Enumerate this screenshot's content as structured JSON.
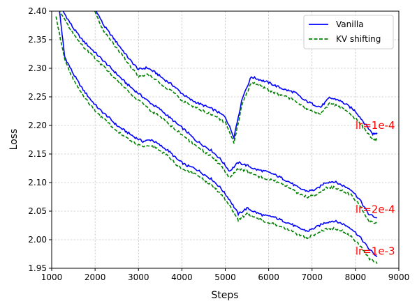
{
  "chart_data": {
    "type": "line",
    "xlabel": "Steps",
    "ylabel": "Loss",
    "xlim": [
      1000,
      9000
    ],
    "ylim": [
      1.95,
      2.4
    ],
    "xticks": [
      1000,
      2000,
      3000,
      4000,
      5000,
      6000,
      7000,
      8000,
      9000
    ],
    "yticks": [
      1.95,
      2.0,
      2.05,
      2.1,
      2.15,
      2.2,
      2.25,
      2.3,
      2.35,
      2.4
    ],
    "xtick_labels": [
      "1000",
      "2000",
      "3000",
      "4000",
      "5000",
      "6000",
      "7000",
      "8000",
      "9000"
    ],
    "ytick_labels": [
      "1.95",
      "2.00",
      "2.05",
      "2.10",
      "2.15",
      "2.20",
      "2.25",
      "2.30",
      "2.35",
      "2.40"
    ],
    "grid": true,
    "legend": {
      "position": "top-right",
      "entries": [
        {
          "name": "Vanilla",
          "color": "#0000ff",
          "style": "solid"
        },
        {
          "name": "KV shifting",
          "color": "#008000",
          "style": "dashed"
        }
      ]
    },
    "series": [
      {
        "name": "Vanilla",
        "group": "lr=1e-4",
        "color": "#0000ff",
        "style": "solid",
        "x": [
          1900,
          2000,
          2200,
          2400,
          2600,
          2800,
          3000,
          3200,
          3400,
          3600,
          3800,
          4000,
          4200,
          4400,
          4600,
          4800,
          5000,
          5200,
          5400,
          5600,
          5800,
          6000,
          6200,
          6400,
          6600,
          6800,
          7000,
          7200,
          7400,
          7600,
          7800,
          8000,
          8200,
          8400,
          8500
        ],
        "y": [
          2.42,
          2.405,
          2.375,
          2.355,
          2.335,
          2.315,
          2.298,
          2.301,
          2.292,
          2.28,
          2.27,
          2.256,
          2.245,
          2.238,
          2.232,
          2.225,
          2.215,
          2.18,
          2.25,
          2.285,
          2.28,
          2.275,
          2.268,
          2.262,
          2.258,
          2.245,
          2.238,
          2.232,
          2.248,
          2.245,
          2.236,
          2.225,
          2.205,
          2.185,
          2.187
        ]
      },
      {
        "name": "KV shifting",
        "group": "lr=1e-4",
        "color": "#008000",
        "style": "dashed",
        "x": [
          1900,
          2000,
          2200,
          2400,
          2600,
          2800,
          3000,
          3200,
          3400,
          3600,
          3800,
          4000,
          4200,
          4400,
          4600,
          4800,
          5000,
          5200,
          5400,
          5600,
          5800,
          6000,
          6200,
          6400,
          6600,
          6800,
          7000,
          7200,
          7400,
          7600,
          7800,
          8000,
          8200,
          8400,
          8500
        ],
        "y": [
          2.415,
          2.398,
          2.365,
          2.345,
          2.325,
          2.305,
          2.285,
          2.29,
          2.28,
          2.268,
          2.258,
          2.244,
          2.235,
          2.228,
          2.222,
          2.215,
          2.205,
          2.17,
          2.24,
          2.275,
          2.27,
          2.262,
          2.255,
          2.25,
          2.245,
          2.232,
          2.225,
          2.22,
          2.238,
          2.235,
          2.225,
          2.212,
          2.195,
          2.175,
          2.177
        ]
      },
      {
        "name": "Vanilla",
        "group": "lr=2e-4",
        "color": "#0000ff",
        "style": "solid",
        "x": [
          1100,
          1300,
          1500,
          1700,
          1900,
          2100,
          2300,
          2500,
          2700,
          2900,
          3100,
          3300,
          3500,
          3700,
          3900,
          4100,
          4300,
          4500,
          4700,
          4900,
          5100,
          5300,
          5500,
          5700,
          5900,
          6100,
          6300,
          6500,
          6700,
          6900,
          7100,
          7300,
          7500,
          7700,
          7900,
          8100,
          8300,
          8500
        ],
        "y": [
          2.42,
          2.395,
          2.37,
          2.35,
          2.335,
          2.32,
          2.305,
          2.29,
          2.275,
          2.262,
          2.25,
          2.238,
          2.228,
          2.215,
          2.202,
          2.19,
          2.175,
          2.165,
          2.155,
          2.14,
          2.12,
          2.135,
          2.13,
          2.123,
          2.12,
          2.115,
          2.108,
          2.1,
          2.09,
          2.085,
          2.088,
          2.1,
          2.102,
          2.095,
          2.088,
          2.07,
          2.045,
          2.038
        ]
      },
      {
        "name": "KV shifting",
        "group": "lr=2e-4",
        "color": "#008000",
        "style": "dashed",
        "x": [
          1100,
          1300,
          1500,
          1700,
          1900,
          2100,
          2300,
          2500,
          2700,
          2900,
          3100,
          3300,
          3500,
          3700,
          3900,
          4100,
          4300,
          4500,
          4700,
          4900,
          5100,
          5300,
          5500,
          5700,
          5900,
          6100,
          6300,
          6500,
          6700,
          6900,
          7100,
          7300,
          7500,
          7700,
          7900,
          8100,
          8300,
          8500
        ],
        "y": [
          2.41,
          2.385,
          2.36,
          2.34,
          2.325,
          2.31,
          2.295,
          2.28,
          2.265,
          2.25,
          2.238,
          2.225,
          2.215,
          2.202,
          2.19,
          2.178,
          2.165,
          2.155,
          2.145,
          2.13,
          2.108,
          2.125,
          2.12,
          2.112,
          2.108,
          2.104,
          2.098,
          2.09,
          2.08,
          2.075,
          2.078,
          2.09,
          2.092,
          2.085,
          2.078,
          2.06,
          2.032,
          2.028
        ]
      },
      {
        "name": "Vanilla",
        "group": "lr=1e-3",
        "color": "#0000ff",
        "style": "solid",
        "x": [
          1180,
          1300,
          1500,
          1700,
          1900,
          2100,
          2300,
          2500,
          2700,
          2900,
          3100,
          3300,
          3500,
          3700,
          3900,
          4100,
          4300,
          4500,
          4700,
          4900,
          5100,
          5300,
          5500,
          5700,
          5900,
          6100,
          6300,
          6500,
          6700,
          6900,
          7100,
          7300,
          7500,
          7700,
          7900,
          8100,
          8300,
          8500
        ],
        "y": [
          2.4,
          2.32,
          2.29,
          2.265,
          2.245,
          2.228,
          2.215,
          2.2,
          2.19,
          2.18,
          2.172,
          2.175,
          2.165,
          2.155,
          2.14,
          2.13,
          2.125,
          2.115,
          2.105,
          2.09,
          2.07,
          2.045,
          2.055,
          2.048,
          2.042,
          2.04,
          2.034,
          2.028,
          2.02,
          2.015,
          2.022,
          2.03,
          2.033,
          2.028,
          2.02,
          2.005,
          1.985,
          1.97
        ]
      },
      {
        "name": "KV shifting",
        "group": "lr=1e-3",
        "color": "#008000",
        "style": "dashed",
        "x": [
          1100,
          1300,
          1500,
          1700,
          1900,
          2100,
          2300,
          2500,
          2700,
          2900,
          3100,
          3300,
          3500,
          3700,
          3900,
          4100,
          4300,
          4500,
          4700,
          4900,
          5100,
          5300,
          5500,
          5700,
          5900,
          6100,
          6300,
          6500,
          6700,
          6900,
          7100,
          7300,
          7500,
          7700,
          7900,
          8100,
          8300,
          8500
        ],
        "y": [
          2.39,
          2.315,
          2.28,
          2.255,
          2.235,
          2.218,
          2.205,
          2.19,
          2.18,
          2.17,
          2.162,
          2.165,
          2.155,
          2.145,
          2.13,
          2.12,
          2.115,
          2.105,
          2.095,
          2.08,
          2.06,
          2.035,
          2.045,
          2.038,
          2.032,
          2.028,
          2.022,
          2.016,
          2.008,
          2.004,
          2.01,
          2.018,
          2.02,
          2.015,
          2.005,
          1.99,
          1.968,
          1.958
        ]
      }
    ],
    "annotations": [
      {
        "text": "lr=1e-4",
        "x": 8000,
        "y": 2.2,
        "color": "#ff0000"
      },
      {
        "text": "lr=2e-4",
        "x": 8000,
        "y": 2.053,
        "color": "#ff0000"
      },
      {
        "text": "lr=1e-3",
        "x": 8000,
        "y": 1.98,
        "color": "#ff0000"
      }
    ]
  }
}
